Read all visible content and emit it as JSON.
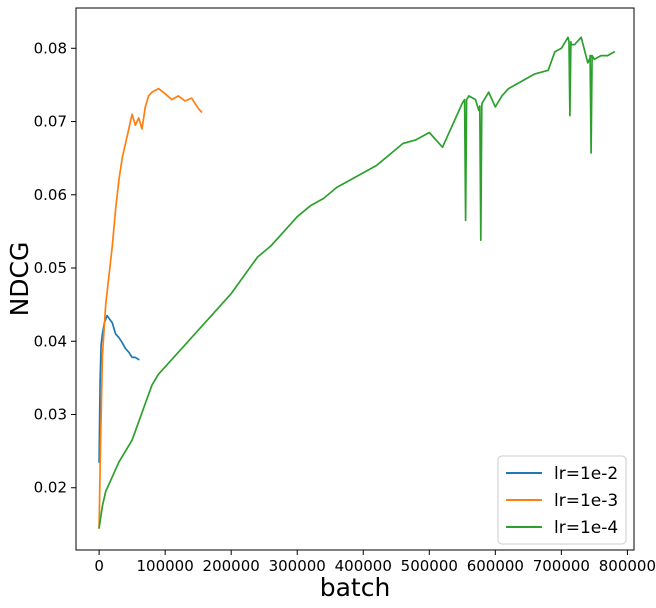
{
  "chart_data": {
    "type": "line",
    "title": "",
    "xlabel": "batch",
    "ylabel": "NDCG",
    "xlim": [
      -35000,
      810000
    ],
    "ylim": [
      0.0115,
      0.0855
    ],
    "xticks": [
      0,
      100000,
      200000,
      300000,
      400000,
      500000,
      600000,
      700000,
      800000
    ],
    "xtick_labels": [
      "0",
      "100000",
      "200000",
      "300000",
      "400000",
      "500000",
      "600000",
      "700000",
      "800000"
    ],
    "yticks": [
      0.02,
      0.03,
      0.04,
      0.05,
      0.06,
      0.07,
      0.08
    ],
    "ytick_labels": [
      "0.02",
      "0.03",
      "0.04",
      "0.05",
      "0.06",
      "0.07",
      "0.08"
    ],
    "grid": false,
    "legend_position": "bottom-right",
    "series": [
      {
        "name": "lr=1e-2",
        "color": "#1f77b4",
        "x": [
          0,
          1500,
          3000,
          5000,
          8000,
          12000,
          16000,
          20000,
          25000,
          30000,
          35000,
          40000,
          45000,
          50000,
          55000,
          60000
        ],
        "y": [
          0.0235,
          0.0345,
          0.0395,
          0.041,
          0.0425,
          0.0435,
          0.043,
          0.0425,
          0.041,
          0.0405,
          0.0398,
          0.039,
          0.0385,
          0.0378,
          0.0378,
          0.0375
        ]
      },
      {
        "name": "lr=1e-3",
        "color": "#ff7f0e",
        "x": [
          0,
          2000,
          5000,
          10000,
          15000,
          20000,
          25000,
          30000,
          35000,
          40000,
          45000,
          50000,
          55000,
          60000,
          65000,
          70000,
          75000,
          80000,
          90000,
          100000,
          110000,
          120000,
          130000,
          140000,
          150000,
          155000
        ],
        "y": [
          0.0145,
          0.025,
          0.038,
          0.045,
          0.049,
          0.053,
          0.058,
          0.062,
          0.065,
          0.067,
          0.069,
          0.071,
          0.0695,
          0.0705,
          0.069,
          0.072,
          0.0735,
          0.074,
          0.0745,
          0.0738,
          0.073,
          0.0735,
          0.0728,
          0.0732,
          0.0718,
          0.0713
        ]
      },
      {
        "name": "lr=1e-4",
        "color": "#2ca02c",
        "x": [
          0,
          5000,
          10000,
          20000,
          30000,
          40000,
          50000,
          60000,
          70000,
          80000,
          90000,
          100000,
          120000,
          140000,
          160000,
          180000,
          200000,
          220000,
          240000,
          260000,
          280000,
          300000,
          320000,
          340000,
          360000,
          380000,
          400000,
          420000,
          440000,
          460000,
          480000,
          500000,
          520000,
          540000,
          550000,
          560000,
          570000,
          575000,
          580000,
          590000,
          600000,
          610000,
          620000,
          640000,
          660000,
          680000,
          690000,
          700000,
          710000,
          715000,
          720000,
          730000,
          740000,
          745000,
          750000,
          760000,
          770000,
          780000
        ],
        "y": [
          0.0145,
          0.0175,
          0.0195,
          0.0215,
          0.0235,
          0.025,
          0.0265,
          0.029,
          0.0315,
          0.034,
          0.0355,
          0.0365,
          0.0385,
          0.0405,
          0.0425,
          0.0445,
          0.0465,
          0.049,
          0.0515,
          0.053,
          0.055,
          0.057,
          0.0585,
          0.0595,
          0.061,
          0.062,
          0.063,
          0.064,
          0.0655,
          0.067,
          0.0675,
          0.0685,
          0.0665,
          0.0705,
          0.0725,
          0.0735,
          0.073,
          0.0715,
          0.0725,
          0.074,
          0.072,
          0.0735,
          0.0745,
          0.0755,
          0.0765,
          0.077,
          0.0795,
          0.08,
          0.0815,
          0.0805,
          0.0805,
          0.0815,
          0.078,
          0.079,
          0.0785,
          0.079,
          0.079,
          0.0795
        ]
      }
    ],
    "spikes": [
      {
        "series": 2,
        "x": 555000,
        "y": 0.0565
      },
      {
        "series": 2,
        "x": 578000,
        "y": 0.0538
      },
      {
        "series": 2,
        "x": 713000,
        "y": 0.0708
      },
      {
        "series": 2,
        "x": 745000,
        "y": 0.0657
      }
    ]
  }
}
